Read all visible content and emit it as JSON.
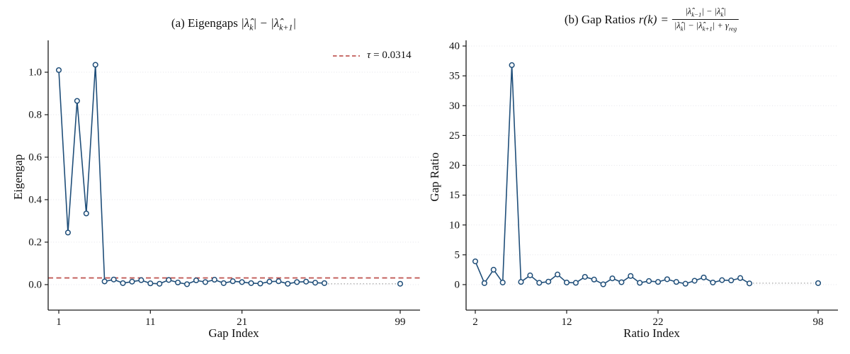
{
  "figure": {
    "background": "#ffffff",
    "series_color": "#1f4e79",
    "threshold_color": "#c05a56",
    "grid_color": "#e4e4ea",
    "connector_color": "#9a9a9a",
    "axis_color": "#1a1a1a"
  },
  "chart_data": [
    {
      "type": "line",
      "panel": "a",
      "title": "(a) Eigengaps |λ̂k| − |λ̂k+1|",
      "title_text": "(a) Eigengaps ",
      "title_math_parts": [
        {
          "t": "|λ̂"
        },
        {
          "t": "k",
          "sub": true
        },
        {
          "t": "| − |λ̂"
        },
        {
          "t": "k+1",
          "sub": true
        },
        {
          "t": "|"
        }
      ],
      "xlabel": "Gap Index",
      "ylabel": "Eigengap",
      "x": [
        1,
        2,
        3,
        4,
        5,
        6,
        7,
        8,
        9,
        10,
        11,
        12,
        13,
        14,
        15,
        16,
        17,
        18,
        19,
        20,
        21,
        22,
        23,
        24,
        25,
        26,
        27,
        28,
        29,
        30
      ],
      "y": [
        1.01,
        0.245,
        0.865,
        0.335,
        1.035,
        0.015,
        0.024,
        0.007,
        0.014,
        0.021,
        0.006,
        0.004,
        0.022,
        0.01,
        0.002,
        0.02,
        0.012,
        0.023,
        0.007,
        0.016,
        0.012,
        0.007,
        0.005,
        0.014,
        0.016,
        0.004,
        0.012,
        0.014,
        0.009,
        0.007
      ],
      "isolated_point": {
        "x": 99,
        "y": 0.004
      },
      "axis_break": "indices 31-98 omitted, shown as dotted connector",
      "xticks": [
        {
          "label": "1",
          "value": 1
        },
        {
          "label": "11",
          "value": 11
        },
        {
          "label": "21",
          "value": 21
        },
        {
          "label": "99",
          "value": 99
        }
      ],
      "yticks": [
        {
          "label": "0.0",
          "value": 0.0
        },
        {
          "label": "0.2",
          "value": 0.2
        },
        {
          "label": "0.4",
          "value": 0.4
        },
        {
          "label": "0.6",
          "value": 0.6
        },
        {
          "label": "0.8",
          "value": 0.8
        },
        {
          "label": "1.0",
          "value": 1.0
        }
      ],
      "ylim": [
        -0.12,
        1.15
      ],
      "grid": "horizontal dotted",
      "threshold": {
        "value": 0.0314,
        "legend_label": "τ = 0.0314",
        "legend_label_parts": [
          {
            "t": "τ"
          },
          {
            "t": " = 0.0314",
            "up": true
          }
        ],
        "style": "dashed",
        "legend_position": "upper right frameless"
      }
    },
    {
      "type": "line",
      "panel": "b",
      "title": "(b) Gap Ratios r(k) = (|λ̂k−1| − |λ̂k|) / (|λ̂k| − |λ̂k+1| + γreg)",
      "title_text": "(b) Gap Ratios",
      "title_math_parts": [
        {
          "t": "r(k)"
        }
      ],
      "title_equals": "=",
      "frac_numerator_parts": [
        {
          "t": "|λ̂"
        },
        {
          "t": "k−1",
          "sub": true
        },
        {
          "t": "| − |λ̂"
        },
        {
          "t": "k",
          "sub": true
        },
        {
          "t": "|"
        }
      ],
      "frac_denominator_parts": [
        {
          "t": "|λ̂"
        },
        {
          "t": "k",
          "sub": true
        },
        {
          "t": "| − |λ̂"
        },
        {
          "t": "k+1",
          "sub": true
        },
        {
          "t": "| + γ"
        },
        {
          "t": "reg",
          "sub": true
        }
      ],
      "xlabel": "Ratio Index",
      "ylabel": "Gap Ratio",
      "x": [
        2,
        3,
        4,
        5,
        6,
        7,
        8,
        9,
        10,
        11,
        12,
        13,
        14,
        15,
        16,
        17,
        18,
        19,
        20,
        21,
        22,
        23,
        24,
        25,
        26,
        27,
        28,
        29,
        30,
        31,
        32
      ],
      "y": [
        3.9,
        0.25,
        2.5,
        0.35,
        36.8,
        0.45,
        1.55,
        0.3,
        0.5,
        1.7,
        0.35,
        0.3,
        1.3,
        0.85,
        0.05,
        1.05,
        0.4,
        1.45,
        0.3,
        0.6,
        0.45,
        0.9,
        0.45,
        0.15,
        0.65,
        1.2,
        0.35,
        0.75,
        0.7,
        1.1,
        0.2
      ],
      "isolated_point": {
        "x": 98,
        "y": 0.25
      },
      "axis_break": "indices 33-97 omitted, shown as dotted connector",
      "xticks": [
        {
          "label": "2",
          "value": 2
        },
        {
          "label": "12",
          "value": 12
        },
        {
          "label": "22",
          "value": 22
        },
        {
          "label": "98",
          "value": 98
        }
      ],
      "yticks": [
        {
          "label": "0",
          "value": 0
        },
        {
          "label": "5",
          "value": 5
        },
        {
          "label": "10",
          "value": 10
        },
        {
          "label": "15",
          "value": 15
        },
        {
          "label": "20",
          "value": 20
        },
        {
          "label": "25",
          "value": 25
        },
        {
          "label": "30",
          "value": 30
        },
        {
          "label": "35",
          "value": 35
        },
        {
          "label": "40",
          "value": 40
        }
      ],
      "ylim": [
        -4.3,
        40.9
      ],
      "grid": "horizontal dotted"
    }
  ]
}
